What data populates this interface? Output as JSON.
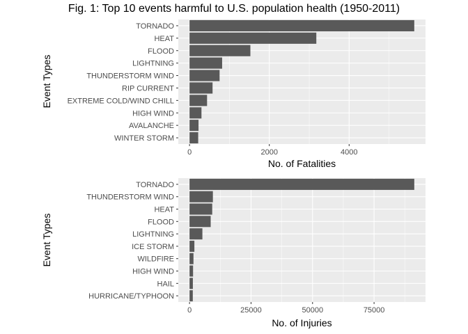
{
  "title": "Fig. 1: Top 10 events harmful to U.S. population health (1950-2011)",
  "chart_data": [
    {
      "type": "bar",
      "orientation": "horizontal",
      "categories": [
        "TORNADO",
        "HEAT",
        "FLOOD",
        "LIGHTNING",
        "THUNDERSTORM WIND",
        "RIP CURRENT",
        "EXTREME COLD/WIND CHILL",
        "HIGH WIND",
        "AVALANCHE",
        "WINTER STORM"
      ],
      "values": [
        5633,
        3178,
        1525,
        817,
        753,
        577,
        439,
        299,
        225,
        217
      ],
      "xlabel": "No. of Fatalities",
      "ylabel": "Event Types",
      "xticks": [
        0,
        2000,
        4000
      ],
      "xticklabels": [
        "0",
        "2000",
        "4000"
      ],
      "xlim": [
        -282,
        5915
      ],
      "grid": true,
      "colors": {
        "bar": "#595959",
        "panel": "#ebebeb",
        "grid": "#ffffff"
      }
    },
    {
      "type": "bar",
      "orientation": "horizontal",
      "categories": [
        "TORNADO",
        "THUNDERSTORM WIND",
        "HEAT",
        "FLOOD",
        "LIGHTNING",
        "ICE STORM",
        "WILDFIRE",
        "HIGH WIND",
        "HAIL",
        "HURRICANE/TYPHOON"
      ],
      "values": [
        91346,
        9493,
        9224,
        8604,
        5230,
        1975,
        1606,
        1440,
        1361,
        1328
      ],
      "xlabel": "No. of Injuries",
      "ylabel": "Event Types",
      "xticks": [
        0,
        25000,
        50000,
        75000
      ],
      "xticklabels": [
        "0",
        "25000",
        "50000",
        "75000"
      ],
      "xlim": [
        -4567,
        95913
      ],
      "grid": true,
      "colors": {
        "bar": "#595959",
        "panel": "#ebebeb",
        "grid": "#ffffff"
      }
    }
  ]
}
